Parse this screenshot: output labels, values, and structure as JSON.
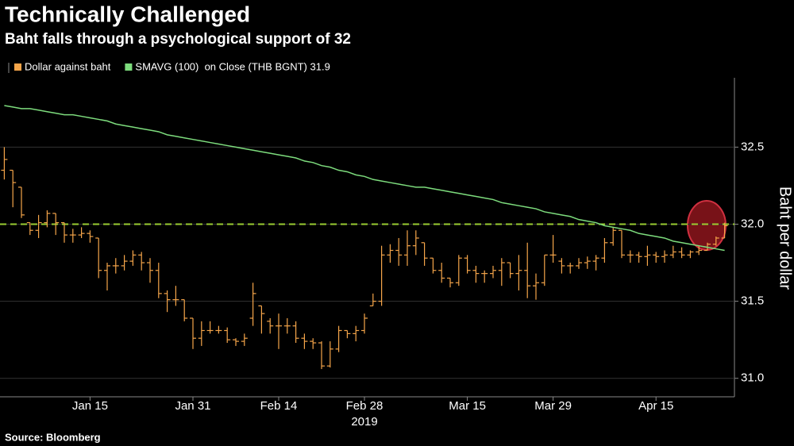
{
  "chart_data": {
    "type": "ohlc",
    "title": "Technically Challenged",
    "subtitle": "Baht falls through a psychological support of 32",
    "y_axis_label": "Baht per dollar",
    "source": "Source: Bloomberg",
    "x_annotation": "2019",
    "categories": [
      null,
      null,
      null,
      null,
      null,
      null,
      null,
      null,
      null,
      null,
      "Jan 15",
      null,
      null,
      null,
      null,
      null,
      null,
      null,
      null,
      null,
      null,
      null,
      "Jan 31",
      null,
      null,
      null,
      null,
      null,
      null,
      null,
      null,
      null,
      "Feb 14",
      null,
      null,
      null,
      null,
      null,
      null,
      null,
      null,
      null,
      "Feb 28",
      null,
      null,
      null,
      null,
      null,
      null,
      null,
      null,
      null,
      null,
      null,
      "Mar 15",
      null,
      null,
      null,
      null,
      null,
      null,
      null,
      null,
      null,
      "Mar 29",
      null,
      null,
      null,
      null,
      null,
      null,
      null,
      null,
      null,
      null,
      null,
      "Apr 15",
      null,
      null,
      null,
      null,
      null,
      null,
      null,
      null
    ],
    "series": [
      {
        "name": "Dollar against baht",
        "color": "#f5a54a",
        "open": [
          32.35,
          32.35,
          32.24,
          32.01,
          31.96,
          32.01,
          32.07,
          32.01,
          31.93,
          31.93,
          31.94,
          31.91,
          31.7,
          31.73,
          31.73,
          31.76,
          31.8,
          31.75,
          31.7,
          31.55,
          31.51,
          31.51,
          31.39,
          31.26,
          31.31,
          31.31,
          31.31,
          31.25,
          31.24,
          31.39,
          31.47,
          31.37,
          31.34,
          31.34,
          31.34,
          31.26,
          31.24,
          31.23,
          31.08,
          31.19,
          31.31,
          31.29,
          31.31,
          31.47,
          31.5,
          31.8,
          31.83,
          31.8,
          31.86,
          31.88,
          31.78,
          31.7,
          31.65,
          31.62,
          31.78,
          31.7,
          31.68,
          31.68,
          31.7,
          31.75,
          31.68,
          31.7,
          31.6,
          31.62,
          31.8,
          31.76,
          31.73,
          31.73,
          31.75,
          31.76,
          31.78,
          31.88,
          31.96,
          31.8,
          31.8,
          31.79,
          31.8,
          31.79,
          31.8,
          31.82,
          31.8,
          31.82,
          31.83,
          31.87,
          31.91
        ],
        "high": [
          32.5,
          32.35,
          32.24,
          32.01,
          32.06,
          32.09,
          32.07,
          32.01,
          31.97,
          31.98,
          31.96,
          31.91,
          31.75,
          31.78,
          31.8,
          31.83,
          31.82,
          31.78,
          31.75,
          31.57,
          31.6,
          31.51,
          31.39,
          31.37,
          31.37,
          31.34,
          31.33,
          31.26,
          31.29,
          31.62,
          31.47,
          31.39,
          31.42,
          31.39,
          31.37,
          31.29,
          31.26,
          31.24,
          31.24,
          31.34,
          31.31,
          31.34,
          31.42,
          31.55,
          31.86,
          31.87,
          31.91,
          31.96,
          31.96,
          31.88,
          31.78,
          31.75,
          31.65,
          31.8,
          31.8,
          31.73,
          31.7,
          31.73,
          31.78,
          31.75,
          31.8,
          31.88,
          31.68,
          31.8,
          31.93,
          31.78,
          31.75,
          31.78,
          31.79,
          31.8,
          31.91,
          31.98,
          31.96,
          31.83,
          31.82,
          31.86,
          31.82,
          31.83,
          31.86,
          31.85,
          31.83,
          31.86,
          31.88,
          31.92,
          32.01
        ],
        "low": [
          32.29,
          32.11,
          32.04,
          31.93,
          31.91,
          31.98,
          31.93,
          31.88,
          31.88,
          31.91,
          31.88,
          31.65,
          31.57,
          31.68,
          31.7,
          31.73,
          31.7,
          31.62,
          31.52,
          31.43,
          31.47,
          31.37,
          31.19,
          31.21,
          31.29,
          31.29,
          31.23,
          31.21,
          31.21,
          31.34,
          31.29,
          31.29,
          31.19,
          31.29,
          31.23,
          31.19,
          31.19,
          31.06,
          31.07,
          31.17,
          31.26,
          31.24,
          31.29,
          31.47,
          31.47,
          31.75,
          31.73,
          31.73,
          31.8,
          31.73,
          31.68,
          31.62,
          31.59,
          31.6,
          31.68,
          31.62,
          31.62,
          31.65,
          31.6,
          31.65,
          31.57,
          31.52,
          31.51,
          31.6,
          31.75,
          31.68,
          31.68,
          31.71,
          31.71,
          31.7,
          31.75,
          31.86,
          31.78,
          31.75,
          31.75,
          31.73,
          31.75,
          31.75,
          31.78,
          31.78,
          31.78,
          31.8,
          31.83,
          31.86,
          31.91
        ],
        "close": [
          32.42,
          32.27,
          32.06,
          31.96,
          32.01,
          32.07,
          32.01,
          31.93,
          31.93,
          31.94,
          31.92,
          31.7,
          31.73,
          31.73,
          31.76,
          31.8,
          31.75,
          31.7,
          31.55,
          31.51,
          31.51,
          31.39,
          31.26,
          31.31,
          31.31,
          31.31,
          31.25,
          31.24,
          31.26,
          31.55,
          31.42,
          31.34,
          31.34,
          31.34,
          31.26,
          31.24,
          31.23,
          31.08,
          31.19,
          31.31,
          31.29,
          31.31,
          31.39,
          31.5,
          31.8,
          31.83,
          31.8,
          31.86,
          31.91,
          31.78,
          31.7,
          31.65,
          31.62,
          31.78,
          31.7,
          31.68,
          31.68,
          31.7,
          31.75,
          31.68,
          31.7,
          31.6,
          31.62,
          31.8,
          31.8,
          31.73,
          31.73,
          31.75,
          31.76,
          31.78,
          31.88,
          31.96,
          31.8,
          31.8,
          31.79,
          31.8,
          31.79,
          31.8,
          31.82,
          31.8,
          31.82,
          31.83,
          31.87,
          31.91,
          31.99
        ]
      },
      {
        "name": "SMAVG (100)  on Close (THB BGNT) 31.9",
        "color": "#7ddc7d",
        "type": "line",
        "values": [
          32.77,
          32.76,
          32.75,
          32.75,
          32.74,
          32.73,
          32.72,
          32.71,
          32.71,
          32.7,
          32.69,
          32.68,
          32.67,
          32.65,
          32.64,
          32.63,
          32.62,
          32.61,
          32.6,
          32.58,
          32.57,
          32.56,
          32.55,
          32.54,
          32.53,
          32.52,
          32.51,
          32.5,
          32.49,
          32.48,
          32.47,
          32.46,
          32.45,
          32.44,
          32.43,
          32.41,
          32.4,
          32.38,
          32.37,
          32.35,
          32.34,
          32.32,
          32.31,
          32.29,
          32.28,
          32.27,
          32.26,
          32.25,
          32.24,
          32.24,
          32.23,
          32.22,
          32.21,
          32.2,
          32.19,
          32.18,
          32.17,
          32.16,
          32.14,
          32.13,
          32.12,
          32.11,
          32.1,
          32.08,
          32.07,
          32.06,
          32.05,
          32.03,
          32.02,
          32.01,
          31.99,
          31.98,
          31.97,
          31.96,
          31.94,
          31.93,
          31.92,
          31.91,
          31.89,
          31.88,
          31.87,
          31.86,
          31.85,
          31.84,
          31.83
        ]
      }
    ],
    "reference_line": {
      "value": 32,
      "color": "#9acd32"
    },
    "ylim": [
      30.88,
      32.95
    ],
    "yticks": [
      {
        "value": 31,
        "label": "31.0"
      },
      31.5,
      {
        "value": 32,
        "label": "32.0"
      },
      32.5
    ],
    "grid": true
  }
}
